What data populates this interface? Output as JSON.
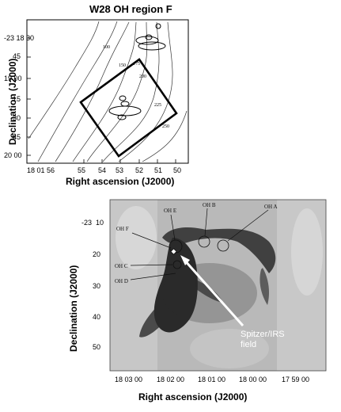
{
  "top_panel": {
    "title": "W28 OH region F",
    "ylabel": "Declination (J2000)",
    "xlabel": "Right ascension (J2000)",
    "y_ticks": [
      "-23 18 30",
      "45",
      "19 00",
      "15",
      "30",
      "45",
      "20 00"
    ],
    "x_ticks": [
      "18 01 56",
      "55",
      "54",
      "53",
      "52",
      "51",
      "50"
    ],
    "contour_labels": [
      "100",
      "150",
      "175",
      "200",
      "225",
      "250"
    ]
  },
  "bottom_panel": {
    "ylabel": "Declination (J2000)",
    "xlabel": "Right ascension (J2000)",
    "y_ticks": [
      "-23  10",
      "20",
      "30",
      "40",
      "50"
    ],
    "x_ticks": [
      "18 03 00",
      "18 02 00",
      "18 01 00",
      "18 00 00",
      "17 59 00"
    ],
    "oh_labels": [
      "OH E",
      "OH B",
      "OH A",
      "OH F",
      "OH C",
      "OH D"
    ],
    "annotation_line1": "Spitzer/IRS",
    "annotation_line2": "field"
  }
}
